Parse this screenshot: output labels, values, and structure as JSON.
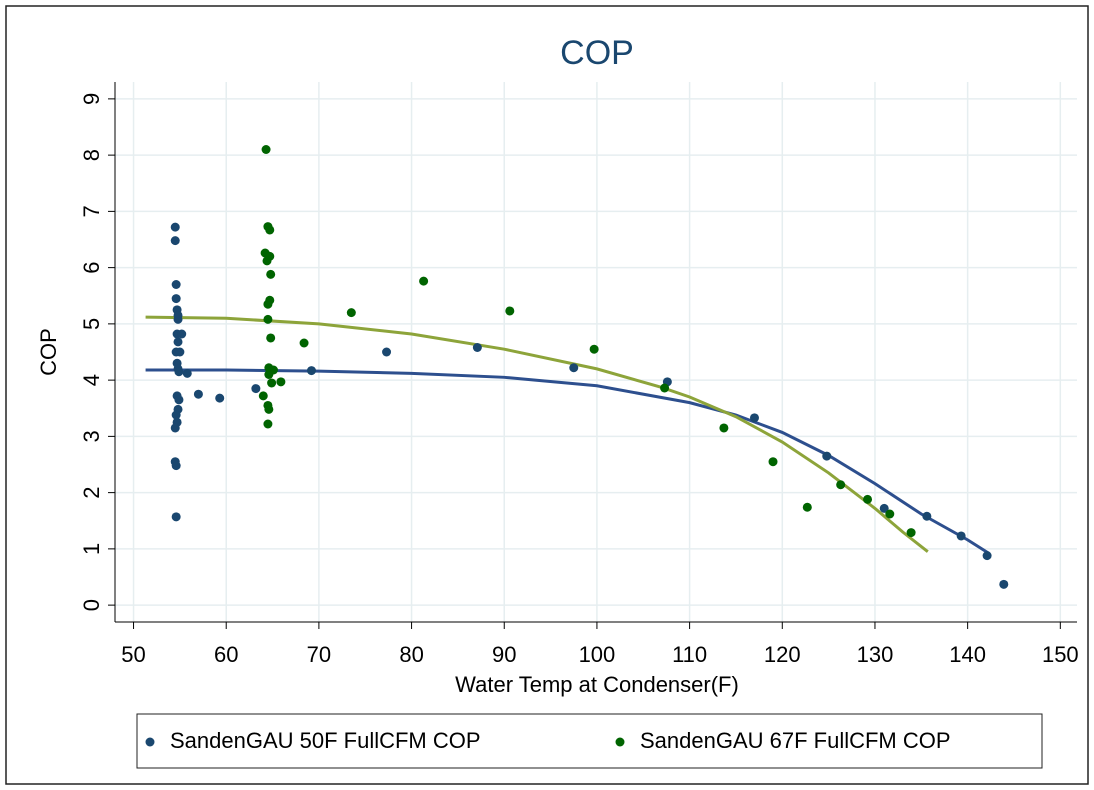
{
  "chart_data": {
    "type": "scatter",
    "title": "COP",
    "x_label": "Water Temp at Condenser(F)",
    "y_label": "COP",
    "xlim": [
      48,
      151.8
    ],
    "ylim": [
      -0.3,
      9.3
    ],
    "xticks": [
      50,
      60,
      70,
      80,
      90,
      100,
      110,
      120,
      130,
      140,
      150
    ],
    "yticks": [
      0,
      1,
      2,
      3,
      4,
      5,
      6,
      7,
      8,
      9
    ],
    "grid": true,
    "legend": "bottom",
    "series": [
      {
        "name": "SandenGAU 50F FullCFM COP",
        "color": "#1a476f",
        "x": [
          54.5,
          54.5,
          54.6,
          54.6,
          54.7,
          54.8,
          54.8,
          54.7,
          55.2,
          54.8,
          54.6,
          55.0,
          54.7,
          54.8,
          54.9,
          55.8,
          54.7,
          54.9,
          57,
          59.3,
          54.8,
          54.6,
          54.7,
          54.5,
          54.5,
          54.6,
          54.6,
          63.2,
          69.2,
          77.3,
          87.1,
          97.5,
          107.6,
          117,
          124.8,
          131,
          135.6,
          139.3,
          142.1,
          143.9
        ],
        "values": [
          6.72,
          6.48,
          5.7,
          5.45,
          5.25,
          5.15,
          5.08,
          4.82,
          4.82,
          4.68,
          4.5,
          4.5,
          4.3,
          4.2,
          4.15,
          4.12,
          3.72,
          3.65,
          3.75,
          3.68,
          3.48,
          3.38,
          3.25,
          3.15,
          2.55,
          2.48,
          1.57,
          3.85,
          4.17,
          4.5,
          4.58,
          4.22,
          3.97,
          3.33,
          2.65,
          1.72,
          1.58,
          1.23,
          0.88,
          0.37
        ]
      },
      {
        "name": "SandenGAU 67F FullCFM COP",
        "color": "#006400",
        "x": [
          64.3,
          64.5,
          64.7,
          64.2,
          64.7,
          64.4,
          64.8,
          64.7,
          64.5,
          64.5,
          64.8,
          64.6,
          65.1,
          64.6,
          65.9,
          64.9,
          64.0,
          64.5,
          64.6,
          64.5,
          68.4,
          73.5,
          81.3,
          90.6,
          99.7,
          107.3,
          113.7,
          119,
          122.7,
          126.3,
          129.2,
          131.6,
          133.9
        ],
        "values": [
          8.1,
          6.73,
          6.67,
          6.26,
          6.2,
          6.12,
          5.88,
          5.42,
          5.35,
          5.08,
          4.75,
          4.22,
          4.18,
          4.1,
          3.97,
          3.95,
          3.72,
          3.55,
          3.48,
          3.22,
          4.66,
          5.2,
          5.76,
          5.23,
          4.55,
          3.86,
          3.15,
          2.55,
          1.74,
          2.14,
          1.88,
          1.62,
          1.29
        ]
      }
    ],
    "fits": [
      {
        "color": "#2d4f8e",
        "x": [
          51.3,
          60,
          70,
          80,
          90,
          100,
          110,
          115,
          120,
          125,
          130,
          135,
          140,
          142.3
        ],
        "values": [
          4.18,
          4.18,
          4.16,
          4.12,
          4.05,
          3.9,
          3.6,
          3.38,
          3.07,
          2.66,
          2.16,
          1.62,
          1.16,
          0.92
        ]
      },
      {
        "color": "#8da43a",
        "x": [
          51.3,
          60,
          70,
          80,
          90,
          100,
          107,
          110,
          115,
          120,
          125,
          130,
          133,
          135.7
        ],
        "values": [
          5.12,
          5.1,
          5.0,
          4.82,
          4.55,
          4.2,
          3.87,
          3.7,
          3.35,
          2.9,
          2.35,
          1.72,
          1.3,
          0.95
        ]
      }
    ]
  }
}
